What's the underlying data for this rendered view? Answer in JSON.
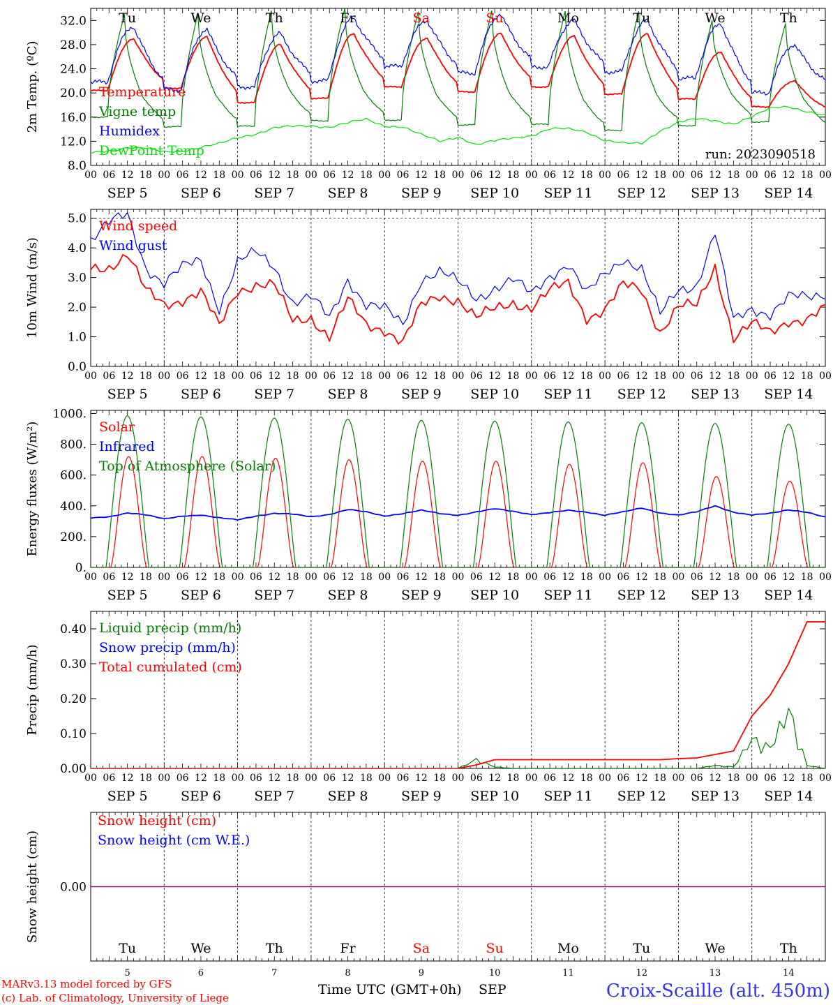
{
  "days": [
    {
      "short": "Tu",
      "date": "SEP  5",
      "num": "5",
      "weekend": false
    },
    {
      "short": "We",
      "date": "SEP  6",
      "num": "6",
      "weekend": false
    },
    {
      "short": "Th",
      "date": "SEP  7",
      "num": "7",
      "weekend": false
    },
    {
      "short": "Fr",
      "date": "SEP  8",
      "num": "8",
      "weekend": false
    },
    {
      "short": "Sa",
      "date": "SEP  9",
      "num": "9",
      "weekend": true
    },
    {
      "short": "Su",
      "date": "SEP 10",
      "num": "10",
      "weekend": true
    },
    {
      "short": "Mo",
      "date": "SEP 11",
      "num": "11",
      "weekend": false
    },
    {
      "short": "Tu",
      "date": "SEP 12",
      "num": "12",
      "weekend": false
    },
    {
      "short": "We",
      "date": "SEP 13",
      "num": "13",
      "weekend": false
    },
    {
      "short": "Th",
      "date": "SEP 14",
      "num": "14",
      "weekend": false
    }
  ],
  "hour_ticks": [
    "00",
    "06",
    "12",
    "18"
  ],
  "final_hour_tick": "00",
  "colors": {
    "red": "#ff0000",
    "green": "#008000",
    "blue": "#0000ff",
    "lime": "#00e000",
    "purple": "#800080",
    "weekend": "#ff0000",
    "title": "#3333ee"
  },
  "chart_data": [
    {
      "type": "line",
      "ylabel": "2m Temp. (ºC)",
      "ylim": [
        8,
        34
      ],
      "yticks": [
        "8.0",
        "12.0",
        "16.0",
        "20.0",
        "24.0",
        "28.0",
        "32.0"
      ],
      "annotation": "run: 2023090518",
      "series": [
        {
          "name": "Temperature",
          "color": "red",
          "daily_min": [
            20.4,
            20.8,
            18.4,
            19.1,
            21.0,
            20.2,
            21.0,
            19.8,
            19.0,
            17.7,
            16.8
          ],
          "daily_max": [
            29.0,
            29.3,
            28.0,
            29.8,
            29.1,
            29.9,
            29.4,
            29.8,
            26.8,
            22.0
          ]
        },
        {
          "name": "Vigne temp",
          "color": "green",
          "daily_min": [
            16.0,
            14.4,
            14.5,
            15.4,
            15.5,
            14.7,
            14.8,
            13.8,
            14.6,
            15.2,
            14.0
          ],
          "daily_max": [
            33.0,
            33.0,
            33.5,
            34.0,
            33.5,
            33.5,
            33.5,
            33.5,
            32.0,
            31.5
          ]
        },
        {
          "name": "Humidex",
          "color": "blue",
          "daily_min": [
            21.8,
            20.5,
            21.0,
            22.0,
            24.4,
            23.3,
            24.3,
            23.5,
            22.4,
            20.0,
            21.0
          ],
          "daily_max": [
            31.0,
            30.5,
            29.8,
            32.4,
            32.0,
            33.0,
            32.0,
            32.0,
            31.5,
            28.0
          ]
        },
        {
          "name": "DewPoint Temp",
          "color": "lime",
          "values": [
            10.0,
            10.5,
            11.0,
            10.8,
            10.2,
            10.5,
            11.0,
            11.5,
            12.6,
            13.3,
            14.2,
            14.4,
            14.6,
            14.4,
            15.0,
            15.6,
            14.6,
            14.4,
            13.0,
            12.0,
            12.8,
            11.4,
            12.0,
            12.6,
            13.0,
            14.0,
            14.0,
            13.6,
            12.2,
            11.6,
            11.6,
            13.8,
            15.2,
            15.6,
            15.4,
            15.0,
            16.0,
            17.4,
            17.8,
            17.0,
            16.2
          ]
        }
      ]
    },
    {
      "type": "line",
      "ylabel": "10m Wind (m/s)",
      "ylim": [
        0,
        5.3
      ],
      "yticks": [
        "0.0",
        "1.0",
        "2.0",
        "3.0",
        "4.0",
        "5.0"
      ],
      "series": [
        {
          "name": "Wind speed",
          "color": "red",
          "values": [
            3.3,
            3.4,
            3.8,
            2.5,
            2.1,
            2.3,
            2.5,
            1.3,
            2.6,
            2.8,
            2.7,
            1.5,
            1.7,
            1.0,
            2.2,
            1.4,
            1.3,
            0.8,
            2.0,
            2.4,
            2.3,
            1.6,
            1.9,
            2.2,
            2.0,
            2.5,
            2.8,
            1.7,
            1.9,
            2.7,
            2.6,
            1.2,
            2.0,
            2.0,
            3.4,
            1.0,
            1.4,
            1.1,
            1.6,
            1.6,
            1.9
          ]
        },
        {
          "name": "Wind gust",
          "color": "blue",
          "values": [
            4.3,
            4.8,
            5.1,
            3.4,
            2.8,
            3.3,
            3.6,
            2.0,
            3.5,
            3.8,
            3.4,
            2.2,
            2.3,
            1.6,
            3.0,
            2.1,
            1.9,
            1.4,
            3.0,
            3.2,
            2.8,
            2.3,
            2.7,
            2.9,
            2.4,
            3.1,
            3.5,
            2.4,
            3.1,
            3.7,
            3.3,
            1.7,
            2.6,
            2.8,
            4.5,
            1.5,
            2.0,
            1.8,
            2.3,
            2.3,
            2.5
          ]
        }
      ]
    },
    {
      "type": "line",
      "ylabel": "Energy fluxes (W/m²)",
      "ylim": [
        0,
        1020
      ],
      "yticks": [
        "0.",
        "200.",
        "400.",
        "600.",
        "800.",
        "1000."
      ],
      "series": [
        {
          "name": "Solar",
          "color": "red",
          "daily_peak": [
            720,
            720,
            710,
            700,
            690,
            690,
            670,
            680,
            590,
            560
          ]
        },
        {
          "name": "Infrared",
          "color": "blue",
          "values": [
            320,
            330,
            355,
            340,
            315,
            335,
            340,
            320,
            310,
            335,
            350,
            345,
            330,
            345,
            375,
            360,
            335,
            350,
            370,
            350,
            340,
            360,
            380,
            365,
            345,
            355,
            370,
            360,
            340,
            360,
            385,
            355,
            340,
            360,
            400,
            360,
            340,
            350,
            375,
            360,
            325
          ]
        },
        {
          "name": "Top of Atmosphere (Solar)",
          "color": "green",
          "daily_peak": [
            985,
            978,
            970,
            962,
            955,
            950,
            945,
            940,
            935,
            930
          ]
        }
      ]
    },
    {
      "type": "line",
      "ylabel": "Precip (mm/h)",
      "ylim": [
        0,
        0.45
      ],
      "yticks": [
        "0.00",
        "0.10",
        "0.20",
        "0.30",
        "0.40"
      ],
      "series": [
        {
          "name": "Liquid precip (mm/h)",
          "color": "green",
          "values": [
            0,
            0,
            0,
            0,
            0,
            0,
            0,
            0,
            0,
            0,
            0,
            0,
            0,
            0,
            0,
            0,
            0,
            0,
            0,
            0,
            0,
            0.03,
            0.005,
            0,
            0,
            0,
            0,
            0,
            0,
            0,
            0,
            0,
            0,
            0,
            0.01,
            0.005,
            0.1,
            0.07,
            0.2,
            0.01,
            0
          ]
        },
        {
          "name": "Snow precip (mm/h)",
          "color": "blue",
          "values": []
        },
        {
          "name": "Total cumulated (cm)",
          "color": "red",
          "values": [
            0,
            0,
            0,
            0,
            0,
            0,
            0,
            0,
            0,
            0,
            0,
            0,
            0,
            0,
            0,
            0,
            0,
            0,
            0,
            0,
            0,
            0.01,
            0.025,
            0.025,
            0.025,
            0.025,
            0.025,
            0.025,
            0.025,
            0.025,
            0.025,
            0.025,
            0.028,
            0.03,
            0.04,
            0.05,
            0.15,
            0.21,
            0.3,
            0.42,
            0.42
          ]
        }
      ]
    },
    {
      "type": "line",
      "ylabel": "Snow height (cm)",
      "ylim": [
        -0.25,
        0.25
      ],
      "yticks": [
        "0.00"
      ],
      "series": [
        {
          "name": "Snow height (cm)",
          "color": "red",
          "values": [
            0,
            0
          ]
        },
        {
          "name": "Snow height (cm W.E.)",
          "color": "blue",
          "values": [
            0,
            0
          ]
        }
      ]
    }
  ],
  "footer": {
    "xlabel": "Time UTC (GMT+0h)",
    "month": "SEP",
    "credit_line1": "MARv3.13 model forced by GFS",
    "credit_line2": "(c) Lab. of Climatology, University of Liege",
    "station": "Croix-Scaille (alt. 450m)"
  }
}
